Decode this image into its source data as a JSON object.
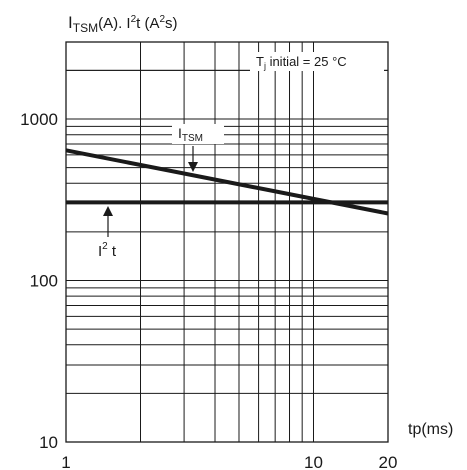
{
  "chart_data": {
    "type": "line",
    "title": {
      "i_main": "I",
      "i_sub": "TSM",
      "i_unit": "(A). I",
      "i2t_sup": "2",
      "i2t_tail": "t (A",
      "unit_sup": "2",
      "unit_tail": "s)"
    },
    "xlabel": "tp(ms)",
    "x_scale": "log",
    "y_scale": "log",
    "xlim": [
      1,
      20
    ],
    "ylim": [
      10,
      3000
    ],
    "x_ticks": [
      {
        "value": 1,
        "label": "1"
      },
      {
        "value": 10,
        "label": "10"
      },
      {
        "value": 20,
        "label": "20"
      }
    ],
    "y_ticks": [
      {
        "value": 10,
        "label": "10"
      },
      {
        "value": 100,
        "label": "100"
      },
      {
        "value": 1000,
        "label": "1000"
      }
    ],
    "grid": true,
    "condition": {
      "prefix": "T",
      "sub": "j",
      "text": " initial = 25 °C"
    },
    "series": [
      {
        "name_main": "I",
        "name_sub": "TSM",
        "x": [
          1,
          20
        ],
        "y": [
          640,
          260
        ],
        "color": "#1a1a1a"
      },
      {
        "name_main": "I",
        "name_sup": "2",
        "name_tail": " t",
        "x": [
          1,
          20
        ],
        "y": [
          305,
          305
        ],
        "color": "#1a1a1a"
      }
    ]
  }
}
